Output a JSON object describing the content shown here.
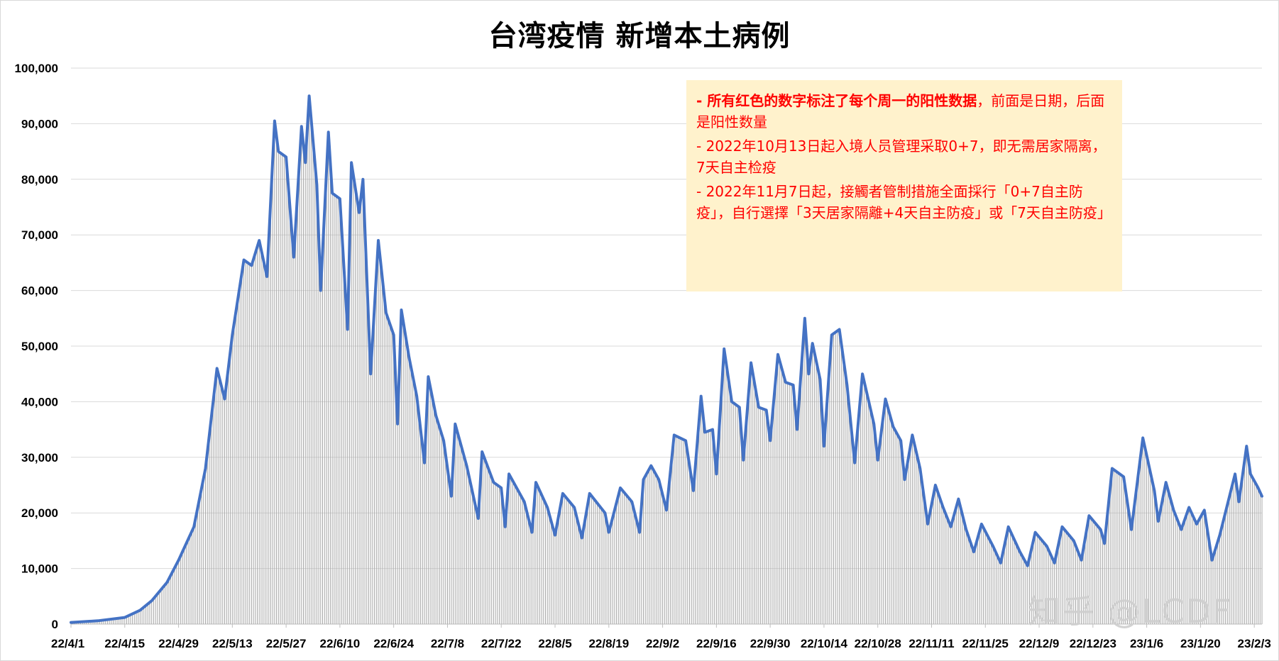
{
  "chart_data": {
    "type": "line",
    "title": "台湾疫情 新增本土病例",
    "ylim": [
      0,
      100000
    ],
    "yticks": [
      "0",
      "10,000",
      "20,000",
      "30,000",
      "40,000",
      "50,000",
      "60,000",
      "70,000",
      "80,000",
      "90,000",
      "100,000"
    ],
    "x_labels": [
      "22/4/1",
      "22/4/15",
      "22/4/29",
      "22/5/13",
      "22/5/27",
      "22/6/10",
      "22/6/24",
      "22/7/8",
      "22/7/22",
      "22/8/5",
      "22/8/19",
      "22/9/2",
      "22/9/16",
      "22/9/30",
      "22/10/14",
      "22/10/28",
      "22/11/11",
      "22/11/25",
      "22/12/9",
      "22/12/23",
      "23/1/6",
      "23/1/20",
      "23/2/3"
    ],
    "grid": true,
    "legend": "none",
    "series": [
      {
        "color": "#4472c4",
        "fill_hatch_color": "#a6a6a6",
        "points": [
          [
            "22/4/1",
            300
          ],
          [
            "22/4/8",
            600
          ],
          [
            "22/4/15",
            1200
          ],
          [
            "22/4/19",
            2500
          ],
          [
            "22/4/22",
            4200
          ],
          [
            "22/4/26",
            7500
          ],
          [
            "22/4/29",
            11500
          ],
          [
            "22/5/3",
            17500
          ],
          [
            "22/5/6",
            28000
          ],
          [
            "22/5/9",
            46000
          ],
          [
            "22/5/11",
            40500
          ],
          [
            "22/5/13",
            52000
          ],
          [
            "22/5/16",
            65500
          ],
          [
            "22/5/18",
            64500
          ],
          [
            "22/5/20",
            69000
          ],
          [
            "22/5/22",
            62500
          ],
          [
            "22/5/24",
            90500
          ],
          [
            "22/5/25",
            85000
          ],
          [
            "22/5/27",
            84000
          ],
          [
            "22/5/29",
            66000
          ],
          [
            "22/5/31",
            89500
          ],
          [
            "22/6/1",
            83000
          ],
          [
            "22/6/2",
            95000
          ],
          [
            "22/6/4",
            79000
          ],
          [
            "22/6/5",
            60000
          ],
          [
            "22/6/7",
            88500
          ],
          [
            "22/6/8",
            77500
          ],
          [
            "22/6/10",
            76500
          ],
          [
            "22/6/12",
            53000
          ],
          [
            "22/6/13",
            83000
          ],
          [
            "22/6/15",
            74000
          ],
          [
            "22/6/16",
            80000
          ],
          [
            "22/6/18",
            45000
          ],
          [
            "22/6/20",
            69000
          ],
          [
            "22/6/22",
            56000
          ],
          [
            "22/6/24",
            52000
          ],
          [
            "22/6/25",
            36000
          ],
          [
            "22/6/26",
            56500
          ],
          [
            "22/6/28",
            48000
          ],
          [
            "22/6/30",
            41000
          ],
          [
            "22/7/2",
            29000
          ],
          [
            "22/7/3",
            44500
          ],
          [
            "22/7/5",
            37500
          ],
          [
            "22/7/7",
            33000
          ],
          [
            "22/7/9",
            23000
          ],
          [
            "22/7/10",
            36000
          ],
          [
            "22/7/13",
            28500
          ],
          [
            "22/7/16",
            19000
          ],
          [
            "22/7/17",
            31000
          ],
          [
            "22/7/20",
            25500
          ],
          [
            "22/7/22",
            24500
          ],
          [
            "22/7/23",
            17500
          ],
          [
            "22/7/24",
            27000
          ],
          [
            "22/7/28",
            22000
          ],
          [
            "22/7/30",
            16500
          ],
          [
            "22/7/31",
            25500
          ],
          [
            "22/8/3",
            21000
          ],
          [
            "22/8/5",
            16000
          ],
          [
            "22/8/7",
            23500
          ],
          [
            "22/8/10",
            21000
          ],
          [
            "22/8/12",
            15500
          ],
          [
            "22/8/14",
            23500
          ],
          [
            "22/8/18",
            20000
          ],
          [
            "22/8/19",
            16500
          ],
          [
            "22/8/22",
            24500
          ],
          [
            "22/8/25",
            22000
          ],
          [
            "22/8/27",
            16500
          ],
          [
            "22/8/28",
            26000
          ],
          [
            "22/8/30",
            28500
          ],
          [
            "22/9/1",
            26000
          ],
          [
            "22/9/3",
            20500
          ],
          [
            "22/9/5",
            34000
          ],
          [
            "22/9/8",
            33000
          ],
          [
            "22/9/10",
            24000
          ],
          [
            "22/9/12",
            41000
          ],
          [
            "22/9/13",
            34500
          ],
          [
            "22/9/15",
            35000
          ],
          [
            "22/9/16",
            27000
          ],
          [
            "22/9/18",
            49500
          ],
          [
            "22/9/20",
            40000
          ],
          [
            "22/9/22",
            39000
          ],
          [
            "22/9/23",
            29500
          ],
          [
            "22/9/25",
            47000
          ],
          [
            "22/9/27",
            39000
          ],
          [
            "22/9/29",
            38500
          ],
          [
            "22/9/30",
            33000
          ],
          [
            "22/10/2",
            48500
          ],
          [
            "22/10/4",
            43500
          ],
          [
            "22/10/6",
            43000
          ],
          [
            "22/10/7",
            35000
          ],
          [
            "22/10/9",
            55000
          ],
          [
            "22/10/10",
            45000
          ],
          [
            "22/10/11",
            50500
          ],
          [
            "22/10/13",
            44000
          ],
          [
            "22/10/14",
            32000
          ],
          [
            "22/10/16",
            52000
          ],
          [
            "22/10/18",
            53000
          ],
          [
            "22/10/20",
            43000
          ],
          [
            "22/10/22",
            29000
          ],
          [
            "22/10/24",
            45000
          ],
          [
            "22/10/27",
            36000
          ],
          [
            "22/10/28",
            29500
          ],
          [
            "22/10/30",
            40500
          ],
          [
            "22/11/1",
            35500
          ],
          [
            "22/11/3",
            33000
          ],
          [
            "22/11/4",
            26000
          ],
          [
            "22/11/6",
            34000
          ],
          [
            "22/11/8",
            28000
          ],
          [
            "22/11/10",
            18000
          ],
          [
            "22/11/12",
            25000
          ],
          [
            "22/11/14",
            21000
          ],
          [
            "22/11/16",
            17500
          ],
          [
            "22/11/18",
            22500
          ],
          [
            "22/11/20",
            17000
          ],
          [
            "22/11/22",
            13000
          ],
          [
            "22/11/24",
            18000
          ],
          [
            "22/11/27",
            14000
          ],
          [
            "22/11/29",
            11000
          ],
          [
            "22/12/1",
            17500
          ],
          [
            "22/12/4",
            13000
          ],
          [
            "22/12/6",
            10500
          ],
          [
            "22/12/8",
            16500
          ],
          [
            "22/12/11",
            14000
          ],
          [
            "22/12/13",
            11000
          ],
          [
            "22/12/15",
            17500
          ],
          [
            "22/12/18",
            15000
          ],
          [
            "22/12/20",
            11500
          ],
          [
            "22/12/22",
            19500
          ],
          [
            "22/12/25",
            17000
          ],
          [
            "22/12/26",
            14500
          ],
          [
            "22/12/28",
            28000
          ],
          [
            "22/12/31",
            26500
          ],
          [
            "23/1/2",
            17000
          ],
          [
            "23/1/5",
            33500
          ],
          [
            "23/1/8",
            24000
          ],
          [
            "23/1/9",
            18500
          ],
          [
            "23/1/11",
            25500
          ],
          [
            "23/1/13",
            20500
          ],
          [
            "23/1/15",
            17000
          ],
          [
            "23/1/17",
            21000
          ],
          [
            "23/1/19",
            18000
          ],
          [
            "23/1/21",
            20500
          ],
          [
            "23/1/23",
            11500
          ],
          [
            "23/1/25",
            16000
          ],
          [
            "23/1/29",
            27000
          ],
          [
            "23/1/30",
            22000
          ],
          [
            "23/2/1",
            32000
          ],
          [
            "23/2/2",
            27000
          ],
          [
            "23/2/4",
            24500
          ],
          [
            "23/2/5",
            23000
          ]
        ]
      }
    ]
  },
  "notes": [
    {
      "segments": [
        {
          "text": "- 所有红色的数字标注了每个周一的阳性数据",
          "weight": "bold"
        },
        {
          "text": "，前面是日期，后面是阳性数量",
          "weight": "normal"
        }
      ]
    },
    {
      "segments": [
        {
          "text": "- 2022年10月13日起入境人员管理采取0+7，即无需居家隔离，7天自主检疫",
          "weight": "normal"
        }
      ]
    },
    {
      "segments": [
        {
          "text": "- 2022年11月7日起，接觸者管制措施全面採行「0+7自主防疫」，自行選擇「3天居家隔離+4天自主防疫」或「7天自主防疫」",
          "weight": "normal"
        }
      ]
    }
  ],
  "watermark": "知乎 @LCDF"
}
